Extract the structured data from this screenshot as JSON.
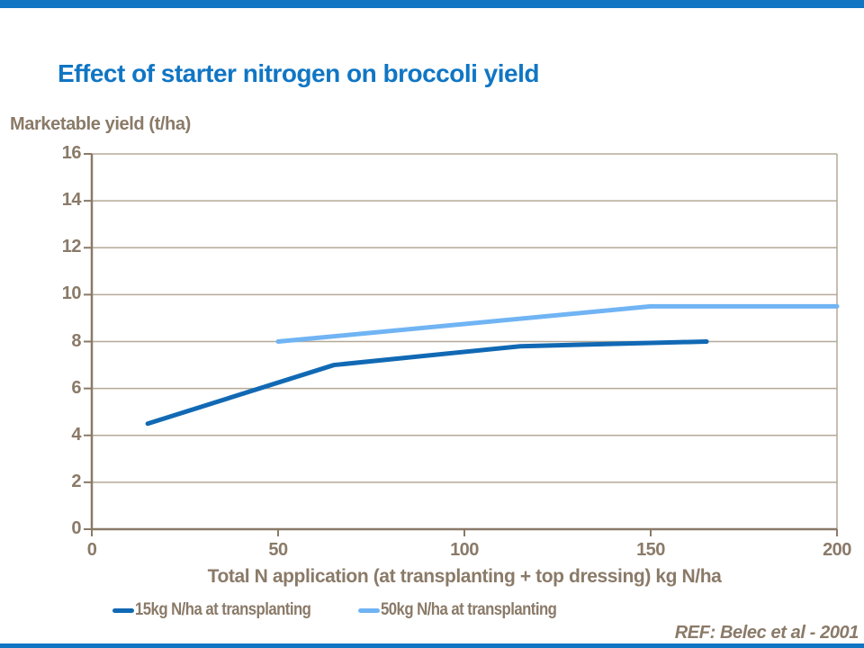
{
  "header": {
    "title": "Effect of starter nitrogen on broccoli yield"
  },
  "colors": {
    "accent_blue": "#1076C4",
    "series1_blue": "#1169B4",
    "series2_blue": "#70B4F4",
    "text_brown": "#8A7A68",
    "gridline_tan": "#B5A998"
  },
  "chart_data": {
    "type": "line",
    "title": "Effect of starter nitrogen on broccoli yield",
    "ylabel": "Marketable yield (t/ha)",
    "xlabel": "Total N application (at transplanting + top dressing) kg N/ha",
    "xlim": [
      0,
      200
    ],
    "ylim": [
      0,
      16
    ],
    "x_ticks": [
      0,
      50,
      100,
      150,
      200
    ],
    "y_ticks": [
      0,
      2,
      4,
      6,
      8,
      10,
      12,
      14,
      16
    ],
    "grid": "horizontal",
    "legend_position": "bottom",
    "series": [
      {
        "name": "15kg N/ha at transplanting",
        "color": "#1169B4",
        "x": [
          15,
          65,
          115,
          165
        ],
        "y": [
          4.5,
          7.0,
          7.8,
          8.0
        ]
      },
      {
        "name": "50kg N/ha at transplanting",
        "color": "#70B4F4",
        "x": [
          50,
          150,
          200
        ],
        "y": [
          8.0,
          9.5,
          9.5
        ]
      }
    ],
    "annotation": "REF: Belec et al - 2001"
  }
}
